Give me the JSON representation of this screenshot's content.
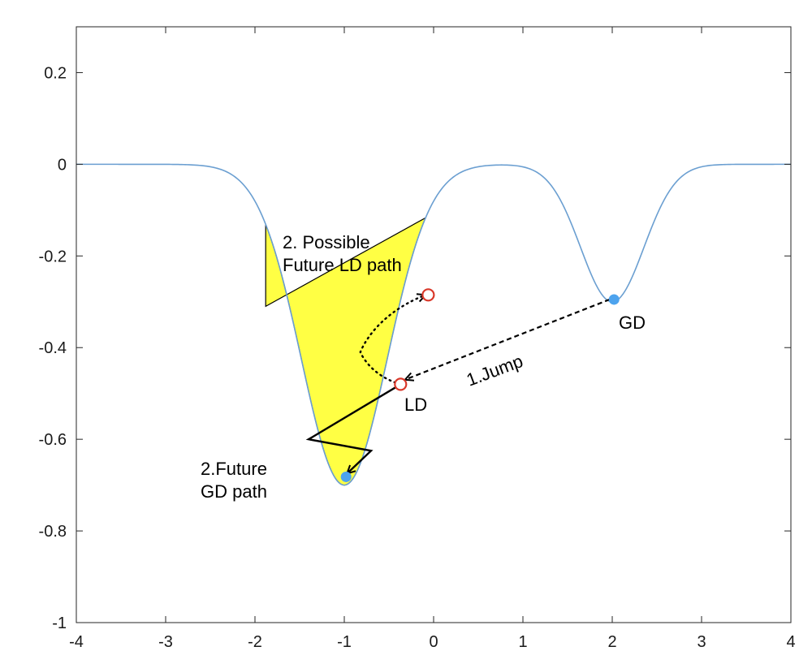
{
  "chart_data": {
    "type": "line",
    "title": "",
    "xlabel": "",
    "ylabel": "",
    "xlim": [
      -4,
      4
    ],
    "ylim": [
      -1,
      0.3
    ],
    "x_ticks": [
      -4,
      -3,
      -2,
      -1,
      0,
      1,
      2,
      3,
      4
    ],
    "x_tick_labels": [
      "-4",
      "-3",
      "-2",
      "-1",
      "0",
      "1",
      "2",
      "3",
      "4"
    ],
    "y_ticks": [
      -1,
      -0.8,
      -0.6,
      -0.4,
      -0.2,
      0,
      0.2
    ],
    "y_tick_labels": [
      "-1",
      "-0.8",
      "-0.6",
      "-0.4",
      "-0.2",
      "0",
      "0.2"
    ],
    "grid": false,
    "curve_model": {
      "description": "sum of two Gaussian wells",
      "wells": [
        {
          "depth": 0.7,
          "center": -1.0,
          "width": 0.68
        },
        {
          "depth": 0.3,
          "center": 2.0,
          "width": 0.5
        }
      ]
    },
    "curve_color": "#6b9fd1",
    "basin_fill": {
      "level": -0.31,
      "x_range": [
        -1.88,
        -0.09
      ],
      "color": "#ffff44"
    },
    "points": [
      {
        "name": "GD",
        "x": 2.02,
        "y": -0.295,
        "style": "filled",
        "color": "#4da3ee"
      },
      {
        "name": "GD-future",
        "x": -0.98,
        "y": -0.682,
        "style": "filled",
        "color": "#4da3ee"
      },
      {
        "name": "LD",
        "x": -0.37,
        "y": -0.48,
        "style": "hollow",
        "color": "#d9382a"
      },
      {
        "name": "LD-future",
        "x": -0.06,
        "y": -0.285,
        "style": "hollow",
        "color": "#d9382a"
      }
    ],
    "paths": {
      "jump": {
        "from": [
          1.97,
          -0.295
        ],
        "to": [
          -0.32,
          -0.47
        ],
        "style": "dashed"
      },
      "ld_future": {
        "points": [
          [
            -0.37,
            -0.48
          ],
          [
            -0.72,
            -0.46
          ],
          [
            -0.82,
            -0.41
          ],
          [
            -0.68,
            -0.33
          ],
          [
            -0.09,
            -0.285
          ]
        ],
        "style": "dotted"
      },
      "gd_future": {
        "points": [
          [
            -0.41,
            -0.485
          ],
          [
            -1.4,
            -0.6
          ],
          [
            -0.7,
            -0.625
          ],
          [
            -0.97,
            -0.675
          ]
        ],
        "style": "solid"
      }
    },
    "annotations": [
      {
        "id": "jump",
        "lines": [
          "1.Jump"
        ]
      },
      {
        "id": "ld_future",
        "lines": [
          "2. Possible",
          "Future LD path"
        ]
      },
      {
        "id": "gd_future",
        "lines": [
          "2.Future",
          "GD path"
        ]
      },
      {
        "id": "gd",
        "lines": [
          "GD"
        ]
      },
      {
        "id": "ld",
        "lines": [
          "LD"
        ]
      }
    ]
  }
}
